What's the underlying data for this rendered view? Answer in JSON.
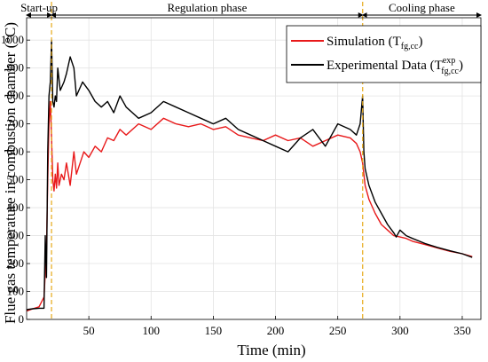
{
  "chart_data": {
    "type": "line",
    "xlabel": "Time (min)",
    "ylabel": "Flue gas temperature in combustion chamber (°C)",
    "xlim": [
      0,
      365
    ],
    "ylim": [
      0,
      1080
    ],
    "x_ticks": [
      50,
      100,
      150,
      200,
      250,
      300,
      350
    ],
    "y_ticks": [
      0,
      100,
      200,
      300,
      400,
      500,
      600,
      700,
      800,
      900,
      1000
    ],
    "grid": true,
    "legend_position": "top-right",
    "legend_entries": [
      {
        "base": "Simulation (T",
        "sub": "fg,cc",
        "sup": "",
        "close": ")",
        "color": "#e8191a"
      },
      {
        "base": "Experimental Data (T",
        "sub": "fg,cc",
        "sup": "exp",
        "close": ")",
        "color": "#000000"
      }
    ],
    "phases": [
      {
        "name": "Start-up",
        "x_start": 0,
        "x_end": 20
      },
      {
        "name": "Regulation phase",
        "x_start": 20,
        "x_end": 270
      },
      {
        "name": "Cooling phase",
        "x_start": 270,
        "x_end": 365
      }
    ],
    "phase_boundaries": [
      20,
      270
    ],
    "boundary_color": "#e6a817",
    "series": [
      {
        "color": "#e8191a",
        "x": [
          0,
          5,
          10,
          14,
          16,
          17,
          18,
          19,
          20,
          21,
          22,
          23,
          24,
          25,
          26,
          28,
          30,
          32,
          35,
          38,
          40,
          43,
          46,
          50,
          55,
          60,
          65,
          70,
          75,
          80,
          90,
          100,
          110,
          120,
          130,
          140,
          150,
          160,
          170,
          180,
          190,
          200,
          210,
          220,
          230,
          240,
          250,
          260,
          265,
          268,
          270,
          272,
          275,
          280,
          285,
          290,
          295,
          300,
          305,
          310,
          320,
          330,
          340,
          350,
          358
        ],
        "y": [
          30,
          38,
          45,
          80,
          250,
          500,
          700,
          780,
          650,
          500,
          460,
          520,
          470,
          560,
          480,
          520,
          500,
          560,
          480,
          600,
          520,
          560,
          600,
          580,
          620,
          600,
          650,
          640,
          680,
          660,
          700,
          680,
          720,
          700,
          690,
          700,
          680,
          690,
          660,
          650,
          640,
          660,
          640,
          650,
          620,
          640,
          660,
          650,
          630,
          600,
          560,
          480,
          430,
          380,
          340,
          320,
          300,
          295,
          290,
          280,
          268,
          256,
          244,
          235,
          225
        ]
      },
      {
        "color": "#000000",
        "x": [
          0,
          5,
          10,
          14,
          15,
          16,
          17,
          18,
          19,
          20,
          21,
          22,
          23,
          24,
          25,
          27,
          30,
          32,
          35,
          38,
          40,
          45,
          50,
          55,
          60,
          65,
          70,
          75,
          80,
          90,
          100,
          110,
          120,
          130,
          140,
          150,
          160,
          170,
          180,
          190,
          200,
          210,
          220,
          230,
          240,
          250,
          260,
          265,
          268,
          270,
          271,
          272,
          275,
          280,
          285,
          290,
          295,
          297,
          300,
          305,
          310,
          320,
          330,
          340,
          350,
          358
        ],
        "y": [
          35,
          38,
          40,
          40,
          300,
          150,
          600,
          800,
          850,
          1000,
          780,
          760,
          800,
          780,
          900,
          820,
          850,
          880,
          940,
          900,
          800,
          850,
          820,
          780,
          760,
          780,
          740,
          800,
          760,
          720,
          740,
          780,
          760,
          740,
          720,
          700,
          720,
          680,
          660,
          640,
          620,
          600,
          650,
          680,
          620,
          700,
          680,
          660,
          700,
          800,
          600,
          540,
          480,
          420,
          380,
          340,
          310,
          295,
          320,
          300,
          290,
          272,
          258,
          246,
          235,
          222
        ]
      }
    ]
  }
}
